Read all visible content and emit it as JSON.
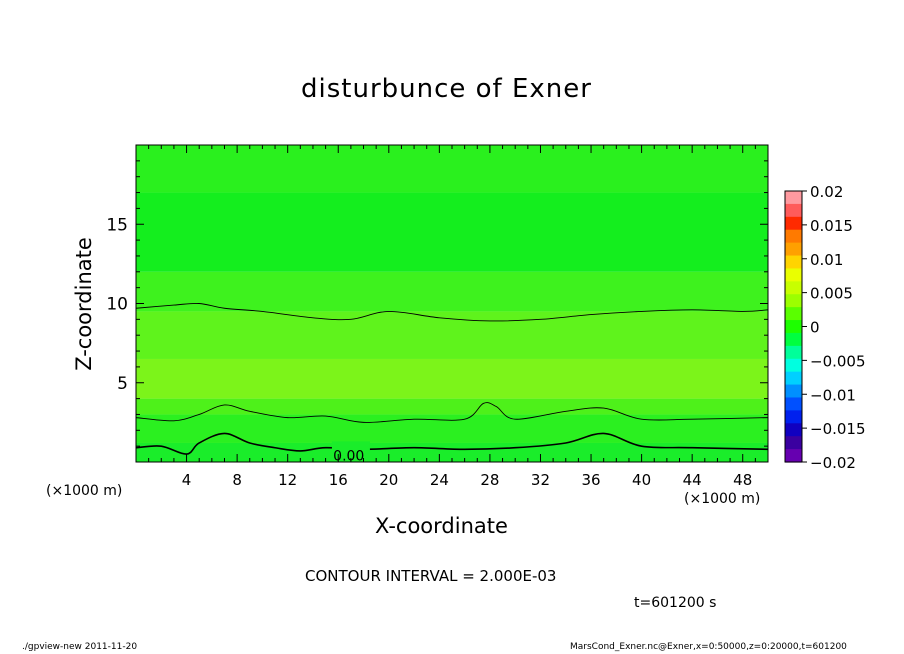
{
  "chart_data": {
    "type": "heatmap",
    "title": "disturbunce of Exner",
    "xlabel": "X-coordinate",
    "ylabel": "Z-coordinate",
    "x_unit_left": "(×1000 m)",
    "x_unit_right": "(×1000 m)",
    "xlim": [
      0,
      50
    ],
    "ylim": [
      0,
      20
    ],
    "x_ticks": [
      4,
      8,
      12,
      16,
      20,
      24,
      28,
      32,
      36,
      40,
      44,
      48
    ],
    "y_ticks": [
      5,
      10,
      15
    ],
    "colorbar": {
      "labels": [
        "0.02",
        "0.015",
        "0.01",
        "0.005",
        "0",
        "−0.005",
        "−0.01",
        "−0.015",
        "−0.02"
      ],
      "levels": [
        0.02,
        0.015,
        0.01,
        0.005,
        0,
        -0.005,
        -0.01,
        -0.015,
        -0.02
      ],
      "colors": [
        "#ff9aa0",
        "#ff5b5b",
        "#ff2a00",
        "#ff7a00",
        "#ffa000",
        "#ffd400",
        "#eaff00",
        "#c8ff00",
        "#9cff00",
        "#5aff00",
        "#1dff00",
        "#00ff40",
        "#00ff9a",
        "#00ffe0",
        "#00d0ff",
        "#0090ff",
        "#0050ff",
        "#0020ee",
        "#1000c0",
        "#3a00a0",
        "#6600b0"
      ]
    },
    "contour_interval_text": "CONTOUR INTERVAL = 2.000E-03",
    "contour_label": "0.00",
    "contour_lines": [
      {
        "name": "zero-contour",
        "x": [
          0,
          2,
          4,
          5,
          7,
          9,
          11,
          13,
          15,
          18,
          22,
          26,
          30,
          34,
          37,
          40,
          44,
          50
        ],
        "z": [
          0.9,
          1.0,
          0.5,
          1.2,
          1.8,
          1.2,
          0.9,
          0.7,
          0.9,
          0.8,
          0.9,
          0.8,
          0.9,
          1.2,
          1.8,
          1.0,
          0.9,
          0.8
        ]
      },
      {
        "name": "lower-contour",
        "x": [
          0,
          3,
          5,
          7,
          9,
          12,
          15,
          18,
          22,
          26,
          27.5,
          28.5,
          30,
          34,
          37,
          40,
          44,
          50
        ],
        "z": [
          2.8,
          2.6,
          3.0,
          3.6,
          3.2,
          2.8,
          2.9,
          2.5,
          2.7,
          2.7,
          3.7,
          3.5,
          2.7,
          3.2,
          3.4,
          2.7,
          2.7,
          2.8
        ]
      },
      {
        "name": "upper-contour",
        "x": [
          0,
          3,
          5,
          7,
          10,
          14,
          17,
          20,
          24,
          28,
          32,
          36,
          40,
          44,
          48,
          50
        ],
        "z": [
          9.7,
          9.9,
          10.0,
          9.7,
          9.5,
          9.1,
          9.0,
          9.5,
          9.1,
          8.9,
          9.0,
          9.3,
          9.5,
          9.6,
          9.5,
          9.6
        ]
      }
    ],
    "field_bands": [
      {
        "z_bottom": 0,
        "z_top": 1.2,
        "color": "#1aed2a"
      },
      {
        "z_bottom": 1.2,
        "z_top": 3.0,
        "color": "#2bf020"
      },
      {
        "z_bottom": 3.0,
        "z_top": 4.0,
        "color": "#4ef11a"
      },
      {
        "z_bottom": 4.0,
        "z_top": 6.5,
        "color": "#7cf41a"
      },
      {
        "z_bottom": 6.5,
        "z_top": 9.5,
        "color": "#5ff31c"
      },
      {
        "z_bottom": 9.5,
        "z_top": 12.0,
        "color": "#3ef21e"
      },
      {
        "z_bottom": 12.0,
        "z_top": 17.0,
        "color": "#14ee1e"
      },
      {
        "z_bottom": 17.0,
        "z_top": 20,
        "color": "#2af01e"
      }
    ]
  },
  "time_label": "t=601200 s",
  "footer": {
    "left": "./gpview-new   2011-11-20",
    "right": "MarsCond_Exner.nc@Exner,x=0:50000,z=0:20000,t=601200"
  }
}
